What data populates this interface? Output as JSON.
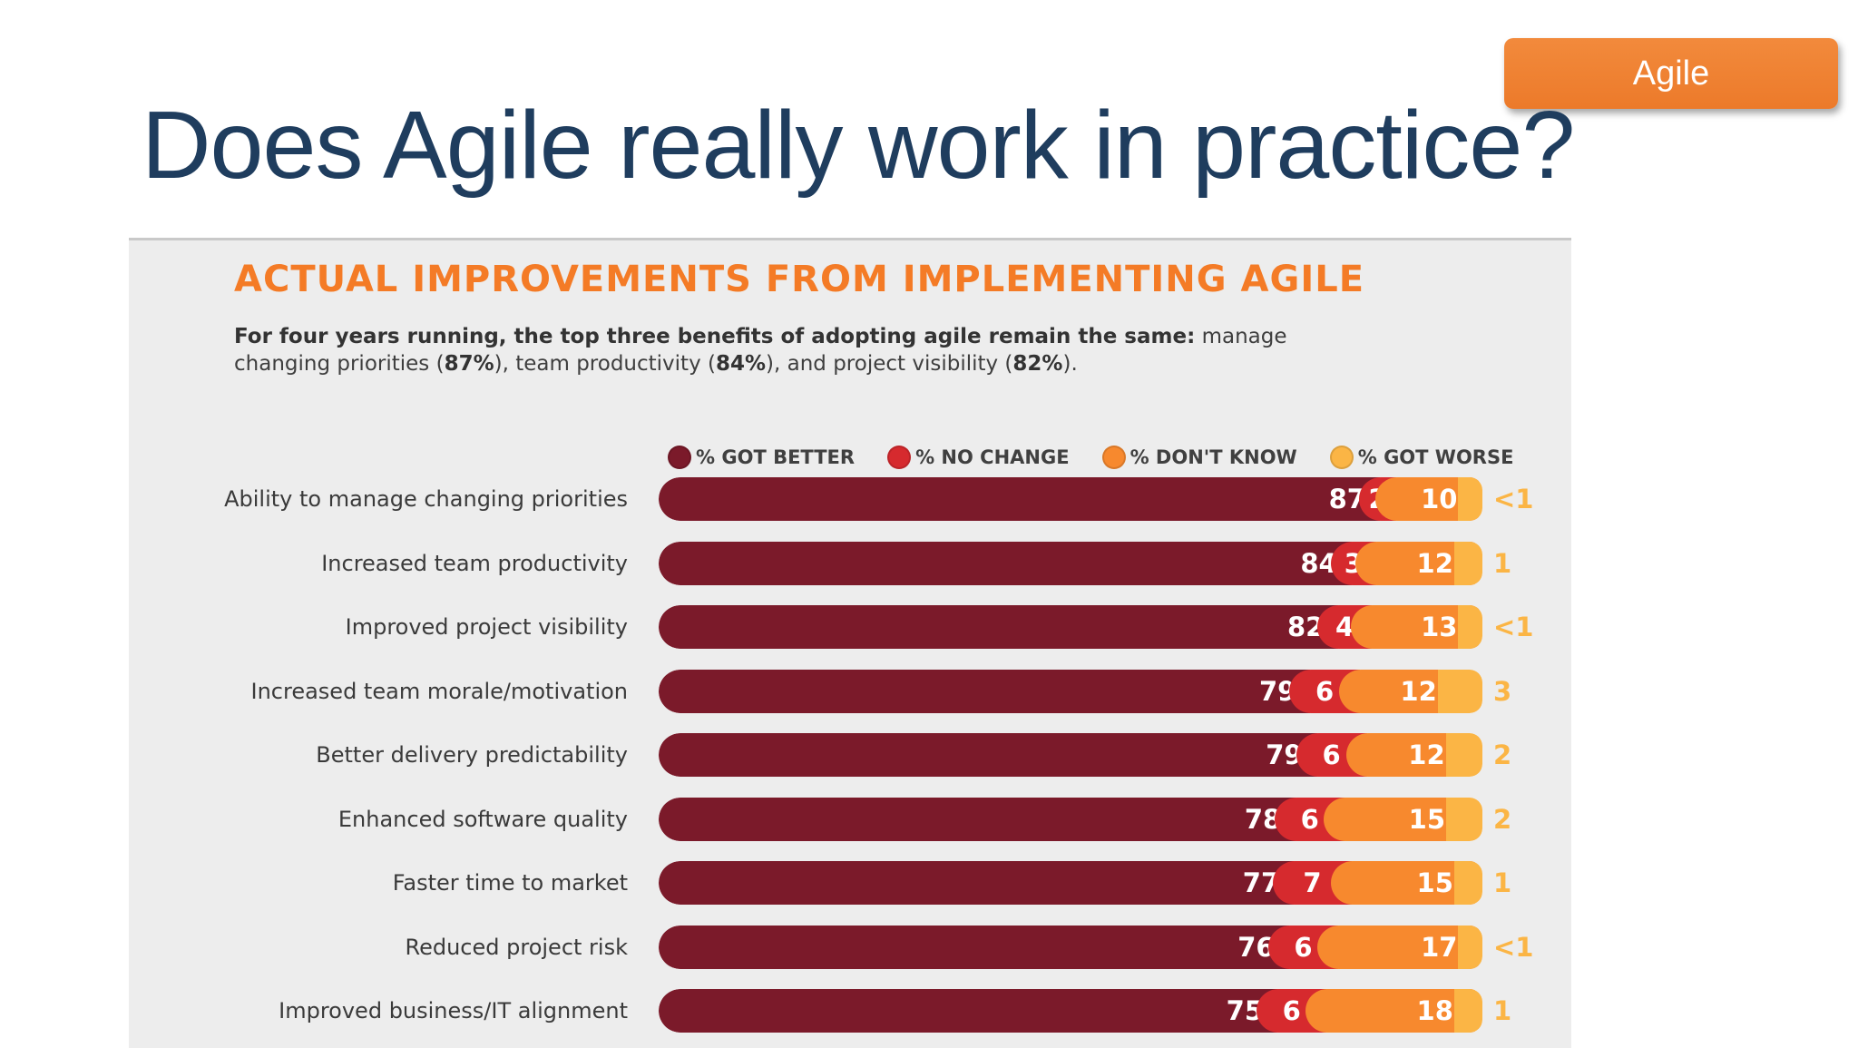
{
  "badge": {
    "label": "Agile"
  },
  "slide": {
    "title": "Does Agile really work in practice?"
  },
  "colors": {
    "title": "#1f3d5e",
    "accent": "#f47b26",
    "got_better": "#7b1a2a",
    "no_change": "#d62a2e",
    "dont_know": "#f7892e",
    "got_worse": "#fbb545"
  },
  "description": {
    "lead": "For four years running, the top three benefits of adopting agile remain the same:",
    "part1": " manage changing priorities (",
    "val1": "87%",
    "part2": "), team productivity (",
    "val2": "84%",
    "part3": "), and project visibility (",
    "val3": "82%",
    "part4": ")."
  },
  "chart_data": {
    "type": "bar",
    "orientation": "horizontal",
    "stacked": true,
    "title": "ACTUAL IMPROVEMENTS FROM IMPLEMENTING AGILE",
    "legend": [
      "% GOT BETTER",
      "% NO CHANGE",
      "% DON'T KNOW",
      "% GOT WORSE"
    ],
    "categories": [
      "Ability to manage changing priorities",
      "Increased team productivity",
      "Improved project visibility",
      "Increased team morale/motivation",
      "Better delivery predictability",
      "Enhanced software quality",
      "Faster time to market",
      "Reduced project risk",
      "Improved business/IT alignment"
    ],
    "series": [
      {
        "name": "% GOT BETTER",
        "values": [
          87,
          84,
          82,
          79,
          79,
          78,
          77,
          76,
          75
        ]
      },
      {
        "name": "% NO CHANGE",
        "values": [
          2,
          3,
          4,
          6,
          6,
          6,
          7,
          6,
          6
        ]
      },
      {
        "name": "% DON'T KNOW",
        "values": [
          10,
          12,
          13,
          12,
          12,
          15,
          15,
          17,
          18
        ]
      },
      {
        "name": "% GOT WORSE",
        "values": [
          0.5,
          1,
          0.5,
          3,
          2,
          2,
          1,
          0.5,
          1
        ]
      }
    ],
    "worse_labels": [
      "<1",
      "1",
      "<1",
      "3",
      "2",
      "2",
      "1",
      "<1",
      "1"
    ]
  }
}
